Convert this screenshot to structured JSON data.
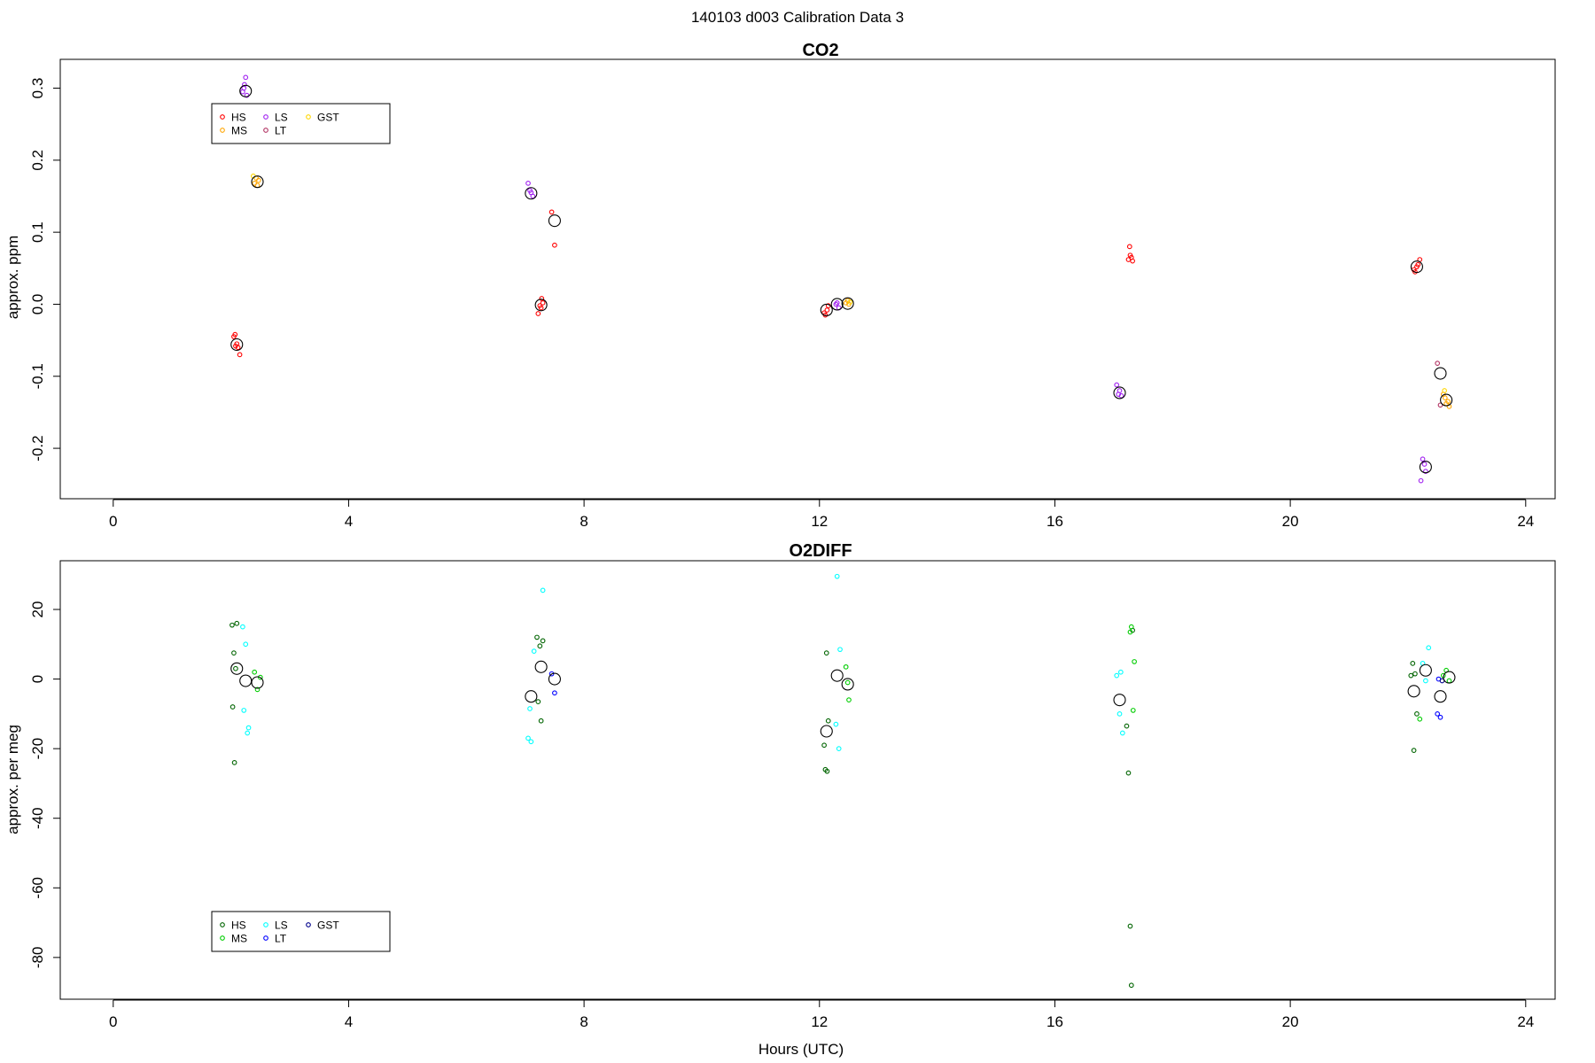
{
  "figure_title": "140103   d003   Calibration Data 3",
  "chart_data": [
    {
      "type": "scatter",
      "title": "CO2",
      "xlabel": "",
      "ylabel": "approx. ppm",
      "xlim": [
        -0.9,
        24.5
      ],
      "ylim": [
        -0.27,
        0.34
      ],
      "xticks": [
        0,
        4,
        8,
        12,
        16,
        20,
        24
      ],
      "yticks": [
        -0.2,
        -0.1,
        0.0,
        0.1,
        0.2,
        0.3
      ],
      "ytick_labels": [
        "-0.2",
        "-0.1",
        "0.0",
        "0.1",
        "0.2",
        "0.3"
      ],
      "legend": {
        "placement": "top-left",
        "items": [
          {
            "label": "HS",
            "color": "#ff0000"
          },
          {
            "label": "MS",
            "color": "#ffa500"
          },
          {
            "label": "LS",
            "color": "#a020f0"
          },
          {
            "label": "LT",
            "color": "#b03060"
          },
          {
            "label": "GST",
            "color": "#ffd700"
          }
        ]
      },
      "series": [
        {
          "name": "HS",
          "color": "#ff0000",
          "x": [
            2.05,
            2.08,
            2.12,
            2.15,
            2.1,
            2.07,
            7.25,
            7.28,
            7.3,
            7.22,
            7.27,
            7.45,
            7.5,
            12.1,
            12.13,
            12.15,
            12.08,
            17.25,
            17.28,
            17.3,
            17.27,
            17.32,
            22.1,
            22.15,
            22.2,
            22.17,
            22.12
          ],
          "y": [
            -0.045,
            -0.058,
            -0.06,
            -0.07,
            -0.055,
            -0.042,
            -0.002,
            0.008,
            0.002,
            -0.013,
            -0.005,
            0.128,
            0.082,
            -0.015,
            -0.008,
            -0.002,
            -0.012,
            0.062,
            0.068,
            0.065,
            0.08,
            0.06,
            0.048,
            0.052,
            0.062,
            0.055,
            0.045
          ]
        },
        {
          "name": "MS",
          "color": "#ffa500",
          "x": [
            2.4,
            2.43,
            2.45,
            2.47,
            12.45,
            12.48,
            12.5,
            22.6,
            22.63,
            22.65,
            22.68,
            22.7
          ],
          "y": [
            0.168,
            0.175,
            0.165,
            0.172,
            0.002,
            0.005,
            0.0,
            -0.125,
            -0.13,
            -0.138,
            -0.135,
            -0.142
          ]
        },
        {
          "name": "LS",
          "color": "#a020f0",
          "x": [
            2.2,
            2.23,
            2.25,
            2.27,
            2.22,
            7.05,
            7.1,
            7.13,
            7.08,
            12.3,
            12.33,
            12.28,
            17.05,
            17.1,
            17.13,
            17.08,
            22.25,
            22.28,
            22.3,
            22.22
          ],
          "y": [
            0.295,
            0.305,
            0.315,
            0.29,
            0.3,
            0.168,
            0.155,
            0.15,
            0.158,
            0.002,
            -0.005,
            0.0,
            -0.112,
            -0.12,
            -0.127,
            -0.125,
            -0.215,
            -0.222,
            -0.232,
            -0.245
          ]
        },
        {
          "name": "LT",
          "color": "#b03060",
          "x": [
            22.5,
            22.55
          ],
          "y": [
            -0.082,
            -0.14
          ]
        },
        {
          "name": "GST",
          "color": "#ffd700",
          "x": [
            2.38,
            12.52,
            22.62
          ],
          "y": [
            0.178,
            0.003,
            -0.12
          ]
        }
      ],
      "means": {
        "x": [
          2.1,
          2.45,
          2.25,
          7.27,
          7.1,
          7.5,
          12.12,
          12.3,
          12.48,
          17.1,
          22.15,
          22.65,
          22.3,
          22.55
        ],
        "y": [
          -0.056,
          0.17,
          0.296,
          -0.001,
          0.154,
          0.116,
          -0.008,
          0.0,
          0.001,
          -0.123,
          0.052,
          -0.133,
          -0.226,
          -0.096
        ]
      }
    },
    {
      "type": "scatter",
      "title": "O2DIFF",
      "xlabel": "Hours (UTC)",
      "ylabel": "approx. per meg",
      "xlim": [
        -0.9,
        24.5
      ],
      "ylim": [
        -92,
        34
      ],
      "xticks": [
        0,
        4,
        8,
        12,
        16,
        20,
        24
      ],
      "yticks": [
        -80,
        -60,
        -40,
        -20,
        0,
        20
      ],
      "ytick_labels": [
        "-80",
        "-60",
        "-40",
        "-20",
        "0",
        "20"
      ],
      "legend": {
        "placement": "bottom-left",
        "items": [
          {
            "label": "HS",
            "color": "#006400"
          },
          {
            "label": "MS",
            "color": "#00cd00"
          },
          {
            "label": "LS",
            "color": "#00ffff"
          },
          {
            "label": "LT",
            "color": "#0000ff"
          },
          {
            "label": "GST",
            "color": "#00008b"
          }
        ]
      },
      "series": [
        {
          "name": "HS",
          "color": "#006400",
          "x": [
            2.02,
            2.05,
            2.08,
            2.1,
            2.03,
            2.06,
            7.2,
            7.25,
            7.3,
            7.22,
            7.27,
            12.08,
            12.1,
            12.12,
            12.15,
            12.13,
            17.22,
            17.25,
            17.28,
            17.3,
            17.32,
            22.05,
            22.1,
            22.15,
            22.08,
            22.12
          ],
          "y": [
            15.5,
            7.5,
            3.0,
            16.0,
            -8.0,
            -24.0,
            12.0,
            9.5,
            11.0,
            -6.5,
            -12.0,
            -19.0,
            -26.0,
            7.5,
            -12.0,
            -26.5,
            -13.5,
            -27.0,
            -71.0,
            -88.0,
            14.0,
            1.0,
            -20.5,
            -10.0,
            4.5,
            1.5
          ]
        },
        {
          "name": "MS",
          "color": "#00cd00",
          "x": [
            2.4,
            2.45,
            2.5,
            12.45,
            12.5,
            12.48,
            17.3,
            17.35,
            17.33,
            17.28,
            22.2,
            22.6,
            22.65,
            22.7
          ],
          "y": [
            2.0,
            -3.0,
            0.5,
            3.5,
            -6.0,
            -1.0,
            15.0,
            5.0,
            -9.0,
            13.5,
            -11.5,
            1.0,
            2.5,
            -0.5
          ]
        },
        {
          "name": "LS",
          "color": "#00ffff",
          "x": [
            2.2,
            2.25,
            2.3,
            2.28,
            2.22,
            7.05,
            7.1,
            7.15,
            7.08,
            7.3,
            12.3,
            12.35,
            12.33,
            12.28,
            17.05,
            17.1,
            17.15,
            17.12,
            22.25,
            22.3,
            22.35
          ],
          "y": [
            15.0,
            10.0,
            -14.0,
            -15.5,
            -9.0,
            -17.0,
            -18.0,
            8.0,
            -8.5,
            25.5,
            29.5,
            8.5,
            -20.0,
            -13.0,
            1.0,
            -10.0,
            -15.5,
            2.0,
            4.5,
            -0.5,
            9.0
          ]
        },
        {
          "name": "LT",
          "color": "#0000ff",
          "x": [
            7.45,
            7.5,
            22.5,
            22.55,
            22.52
          ],
          "y": [
            1.5,
            -4.0,
            -10.0,
            -11.0,
            0.0
          ]
        },
        {
          "name": "GST",
          "color": "#00008b",
          "x": [
            22.58
          ],
          "y": [
            -0.5
          ]
        }
      ],
      "means": {
        "x": [
          2.1,
          2.25,
          2.45,
          7.1,
          7.27,
          7.5,
          12.12,
          12.3,
          12.48,
          17.1,
          22.1,
          22.3,
          22.55,
          22.7
        ],
        "y": [
          3.0,
          -0.5,
          -1.0,
          -5.0,
          3.5,
          0.0,
          -15.0,
          1.0,
          -1.5,
          -6.0,
          -3.5,
          2.5,
          -5.0,
          0.5
        ]
      }
    }
  ]
}
